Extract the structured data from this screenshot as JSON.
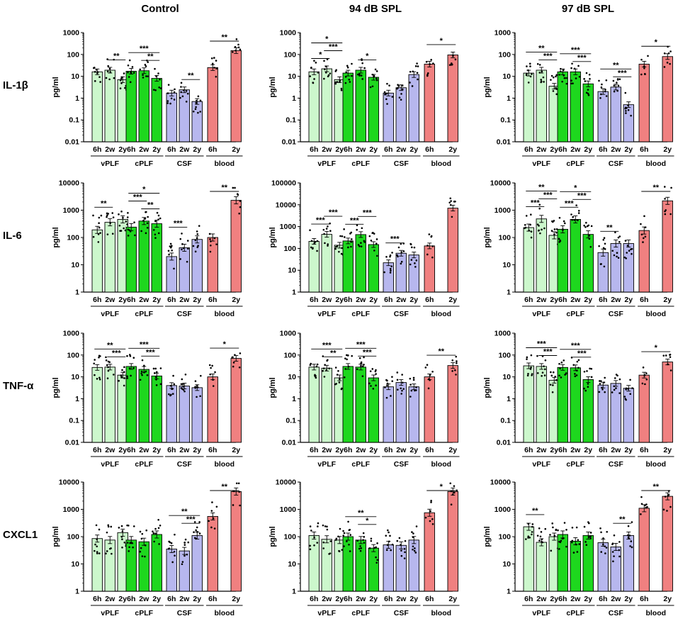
{
  "colors": {
    "vPLF": "#ccf7cc",
    "cPLF": "#1ed71e",
    "CSF": "#b7b7ee",
    "blood": "#f08080",
    "axis": "#000000",
    "dot": "#000000"
  },
  "chart_data": {
    "type": "bar",
    "log_y": true,
    "column_titles": [
      "Control",
      "94 dB SPL",
      "97 dB SPL"
    ],
    "row_labels": [
      "IL-1β",
      "IL-6",
      "TNF-α",
      "CXCL1"
    ],
    "ylabel": "pg/ml",
    "ylim_by_row": [
      [
        0.01,
        1000
      ],
      [
        1,
        10000
      ],
      [
        0.01,
        1000
      ],
      [
        1,
        10000
      ]
    ],
    "ylim_94dB_IL6": [
      1,
      100000
    ],
    "yticks_by_row": [
      [
        "0.01",
        "0.1",
        "1",
        "10",
        "100",
        "1000"
      ],
      [
        "1",
        "10",
        "100",
        "1000",
        "10000"
      ],
      [
        "0.01",
        "0.1",
        "1",
        "10",
        "100",
        "1000"
      ],
      [
        "1",
        "10",
        "100",
        "1000",
        "10000"
      ]
    ],
    "yticks_94dB_IL6": [
      "1",
      "10",
      "100",
      "1000",
      "10000",
      "100000"
    ],
    "groups": [
      {
        "name": "vPLF",
        "timepoints": [
          "6h",
          "2w",
          "2y"
        ]
      },
      {
        "name": "cPLF",
        "timepoints": [
          "6h",
          "2w",
          "2y"
        ]
      },
      {
        "name": "CSF",
        "timepoints": [
          "6h",
          "2w",
          "2y"
        ]
      },
      {
        "name": "blood",
        "timepoints": [
          "6h",
          "2y"
        ]
      }
    ],
    "panels": [
      {
        "row": 0,
        "col": 0,
        "cytokine": "IL-1β",
        "condition": "Control",
        "values": {
          "vPLF": [
            16,
            19,
            7
          ],
          "cPLF": [
            17,
            18,
            8
          ],
          "CSF": [
            1.7,
            2.4,
            0.7
          ],
          "blood": [
            25,
            150
          ]
        },
        "sig": [
          {
            "group": "vPLF",
            "from": 1,
            "to": 2,
            "label": "**",
            "level": 0
          },
          {
            "group": "cPLF",
            "from": 0,
            "to": 2,
            "label": "***",
            "level": 1
          },
          {
            "group": "cPLF",
            "from": 1,
            "to": 2,
            "label": "**",
            "level": 0
          },
          {
            "group": "CSF",
            "from": 1,
            "to": 2,
            "label": "**",
            "level": 0
          },
          {
            "group": "blood",
            "from": 0,
            "to": 1,
            "label": "**",
            "level": 0
          }
        ]
      },
      {
        "row": 0,
        "col": 1,
        "cytokine": "IL-1β",
        "condition": "94 dB SPL",
        "values": {
          "vPLF": [
            16,
            22,
            7
          ],
          "cPLF": [
            14,
            19,
            9
          ],
          "CSF": [
            1.7,
            3,
            12
          ],
          "blood": [
            36,
            95
          ]
        },
        "sig": [
          {
            "group": "vPLF",
            "from": 0,
            "to": 1,
            "label": "*",
            "level": 0
          },
          {
            "group": "vPLF",
            "from": 1,
            "to": 2,
            "label": "***",
            "level": 1
          },
          {
            "group": "vPLF",
            "from": 0,
            "to": 2,
            "label": "*",
            "level": 2
          },
          {
            "group": "cPLF",
            "from": 1,
            "to": 2,
            "label": "*",
            "level": 0
          },
          {
            "group": "blood",
            "from": 0,
            "to": 1,
            "label": "*",
            "level": 0
          }
        ]
      },
      {
        "row": 0,
        "col": 2,
        "cytokine": "IL-1β",
        "condition": "97 dB SPL",
        "values": {
          "vPLF": [
            14,
            19,
            3.5
          ],
          "cPLF": [
            16,
            16,
            4.5
          ],
          "CSF": [
            2,
            3.2,
            0.5
          ],
          "blood": [
            36,
            80
          ]
        },
        "sig": [
          {
            "group": "vPLF",
            "from": 1,
            "to": 2,
            "label": "***",
            "level": 0
          },
          {
            "group": "vPLF",
            "from": 0,
            "to": 2,
            "label": "**",
            "level": 1
          },
          {
            "group": "cPLF",
            "from": 1,
            "to": 2,
            "label": "***",
            "level": 0
          },
          {
            "group": "cPLF",
            "from": 0,
            "to": 2,
            "label": "***",
            "level": 1
          },
          {
            "group": "CSF",
            "from": 1,
            "to": 2,
            "label": "***",
            "level": 0
          },
          {
            "group": "CSF",
            "from": 0,
            "to": 2,
            "label": "**",
            "level": 1
          },
          {
            "group": "blood",
            "from": 0,
            "to": 1,
            "label": "*",
            "level": 0
          }
        ]
      },
      {
        "row": 1,
        "col": 0,
        "cytokine": "IL-6",
        "condition": "Control",
        "values": {
          "vPLF": [
            190,
            360,
            460
          ],
          "cPLF": [
            240,
            400,
            320
          ],
          "CSF": [
            20,
            42,
            85
          ],
          "blood": [
            100,
            2300
          ]
        },
        "sig": [
          {
            "group": "vPLF",
            "from": 0,
            "to": 1,
            "label": "**",
            "level": 0
          },
          {
            "group": "cPLF",
            "from": 1,
            "to": 2,
            "label": "**",
            "level": 0
          },
          {
            "group": "cPLF",
            "from": 0,
            "to": 1,
            "label": "***",
            "level": 1
          },
          {
            "group": "cPLF",
            "from": 0,
            "to": 2,
            "label": "*",
            "level": 2
          },
          {
            "group": "CSF",
            "from": 0,
            "to": 1,
            "label": "***",
            "level": 0
          },
          {
            "group": "blood",
            "from": 0,
            "to": 1,
            "label": "**",
            "level": 0
          }
        ]
      },
      {
        "row": 1,
        "col": 1,
        "cytokine": "IL-6",
        "condition": "94 dB SPL",
        "values": {
          "vPLF": [
            210,
            440,
            140
          ],
          "cPLF": [
            220,
            430,
            150
          ],
          "CSF": [
            22,
            60,
            50
          ],
          "blood": [
            130,
            7000
          ]
        },
        "sig": [
          {
            "group": "vPLF",
            "from": 0,
            "to": 1,
            "label": "***",
            "level": 0
          },
          {
            "group": "vPLF",
            "from": 1,
            "to": 2,
            "label": "***",
            "level": 1
          },
          {
            "group": "cPLF",
            "from": 0,
            "to": 1,
            "label": "***",
            "level": 0
          },
          {
            "group": "cPLF",
            "from": 1,
            "to": 2,
            "label": "***",
            "level": 1
          },
          {
            "group": "CSF",
            "from": 0,
            "to": 1,
            "label": "***",
            "level": 0
          }
        ]
      },
      {
        "row": 1,
        "col": 2,
        "cytokine": "IL-6",
        "condition": "97 dB SPL",
        "values": {
          "vPLF": [
            230,
            480,
            120
          ],
          "cPLF": [
            200,
            460,
            130
          ],
          "CSF": [
            28,
            60,
            60
          ],
          "blood": [
            180,
            2200
          ]
        },
        "sig": [
          {
            "group": "vPLF",
            "from": 0,
            "to": 1,
            "label": "***",
            "level": 0
          },
          {
            "group": "vPLF",
            "from": 1,
            "to": 2,
            "label": "***",
            "level": 1
          },
          {
            "group": "vPLF",
            "from": 0,
            "to": 2,
            "label": "**",
            "level": 2
          },
          {
            "group": "cPLF",
            "from": 0,
            "to": 1,
            "label": "***",
            "level": 0
          },
          {
            "group": "cPLF",
            "from": 1,
            "to": 2,
            "label": "***",
            "level": 1
          },
          {
            "group": "cPLF",
            "from": 0,
            "to": 2,
            "label": "*",
            "level": 2
          },
          {
            "group": "CSF",
            "from": 0,
            "to": 1,
            "label": "**",
            "level": 0
          },
          {
            "group": "blood",
            "from": 0,
            "to": 1,
            "label": "**",
            "level": 0
          }
        ]
      },
      {
        "row": 2,
        "col": 0,
        "cytokine": "TNF-α",
        "condition": "Control",
        "values": {
          "vPLF": [
            27,
            28,
            12
          ],
          "cPLF": [
            30,
            22,
            11
          ],
          "CSF": [
            4,
            3.8,
            3.2
          ],
          "blood": [
            10,
            70
          ]
        },
        "sig": [
          {
            "group": "vPLF",
            "from": 1,
            "to": 2,
            "label": "***",
            "level": 0
          },
          {
            "group": "vPLF",
            "from": 0,
            "to": 2,
            "label": "**",
            "level": 1
          },
          {
            "group": "cPLF",
            "from": 1,
            "to": 2,
            "label": "***",
            "level": 0
          },
          {
            "group": "cPLF",
            "from": 0,
            "to": 2,
            "label": "***",
            "level": 1
          },
          {
            "group": "blood",
            "from": 0,
            "to": 1,
            "label": "*",
            "level": 0
          }
        ]
      },
      {
        "row": 2,
        "col": 1,
        "cytokine": "TNF-α",
        "condition": "94 dB SPL",
        "values": {
          "vPLF": [
            28,
            25,
            9
          ],
          "cPLF": [
            30,
            28,
            9
          ],
          "CSF": [
            3.5,
            5.5,
            3.5
          ],
          "blood": [
            10,
            33
          ]
        },
        "sig": [
          {
            "group": "vPLF",
            "from": 1,
            "to": 2,
            "label": "**",
            "level": 0
          },
          {
            "group": "vPLF",
            "from": 0,
            "to": 2,
            "label": "***",
            "level": 1
          },
          {
            "group": "cPLF",
            "from": 1,
            "to": 2,
            "label": "***",
            "level": 0
          },
          {
            "group": "cPLF",
            "from": 0,
            "to": 2,
            "label": "***",
            "level": 1
          },
          {
            "group": "blood",
            "from": 0,
            "to": 1,
            "label": "**",
            "level": 0
          }
        ]
      },
      {
        "row": 2,
        "col": 2,
        "cytokine": "TNF-α",
        "condition": "97 dB SPL",
        "values": {
          "vPLF": [
            32,
            30,
            7
          ],
          "cPLF": [
            27,
            26,
            7.5
          ],
          "CSF": [
            4.2,
            5,
            3
          ],
          "blood": [
            12,
            48
          ]
        },
        "sig": [
          {
            "group": "vPLF",
            "from": 1,
            "to": 2,
            "label": "***",
            "level": 0
          },
          {
            "group": "vPLF",
            "from": 0,
            "to": 2,
            "label": "***",
            "level": 1
          },
          {
            "group": "cPLF",
            "from": 1,
            "to": 2,
            "label": "***",
            "level": 0
          },
          {
            "group": "cPLF",
            "from": 0,
            "to": 2,
            "label": "***",
            "level": 1
          },
          {
            "group": "blood",
            "from": 0,
            "to": 1,
            "label": "*",
            "level": 0
          }
        ]
      },
      {
        "row": 3,
        "col": 0,
        "cytokine": "CXCL1",
        "condition": "Control",
        "values": {
          "vPLF": [
            85,
            75,
            140
          ],
          "cPLF": [
            75,
            65,
            120
          ],
          "CSF": [
            35,
            30,
            110
          ],
          "blood": [
            550,
            4500
          ]
        },
        "sig": [
          {
            "group": "CSF",
            "from": 1,
            "to": 2,
            "label": "***",
            "level": 0
          },
          {
            "group": "CSF",
            "from": 0,
            "to": 2,
            "label": "**",
            "level": 1
          },
          {
            "group": "blood",
            "from": 0,
            "to": 1,
            "label": "**",
            "level": 0
          }
        ]
      },
      {
        "row": 3,
        "col": 1,
        "cytokine": "CXCL1",
        "condition": "94 dB SPL",
        "values": {
          "vPLF": [
            110,
            80,
            75
          ],
          "cPLF": [
            100,
            75,
            38
          ],
          "CSF": [
            50,
            48,
            75
          ],
          "blood": [
            750,
            4500
          ]
        },
        "sig": [
          {
            "group": "cPLF",
            "from": 1,
            "to": 2,
            "label": "*",
            "level": 0
          },
          {
            "group": "cPLF",
            "from": 0,
            "to": 2,
            "label": "**",
            "level": 1
          },
          {
            "group": "blood",
            "from": 0,
            "to": 1,
            "label": "*",
            "level": 0
          }
        ]
      },
      {
        "row": 3,
        "col": 2,
        "cytokine": "CXCL1",
        "condition": "97 dB SPL",
        "values": {
          "vPLF": [
            230,
            62,
            100
          ],
          "cPLF": [
            120,
            68,
            110
          ],
          "CSF": [
            60,
            42,
            110
          ],
          "blood": [
            1100,
            3000
          ]
        },
        "sig": [
          {
            "group": "vPLF",
            "from": 0,
            "to": 1,
            "label": "**",
            "level": 0
          },
          {
            "group": "CSF",
            "from": 1,
            "to": 2,
            "label": "**",
            "level": 0
          },
          {
            "group": "blood",
            "from": 0,
            "to": 1,
            "label": "**",
            "level": 0
          }
        ]
      }
    ]
  }
}
